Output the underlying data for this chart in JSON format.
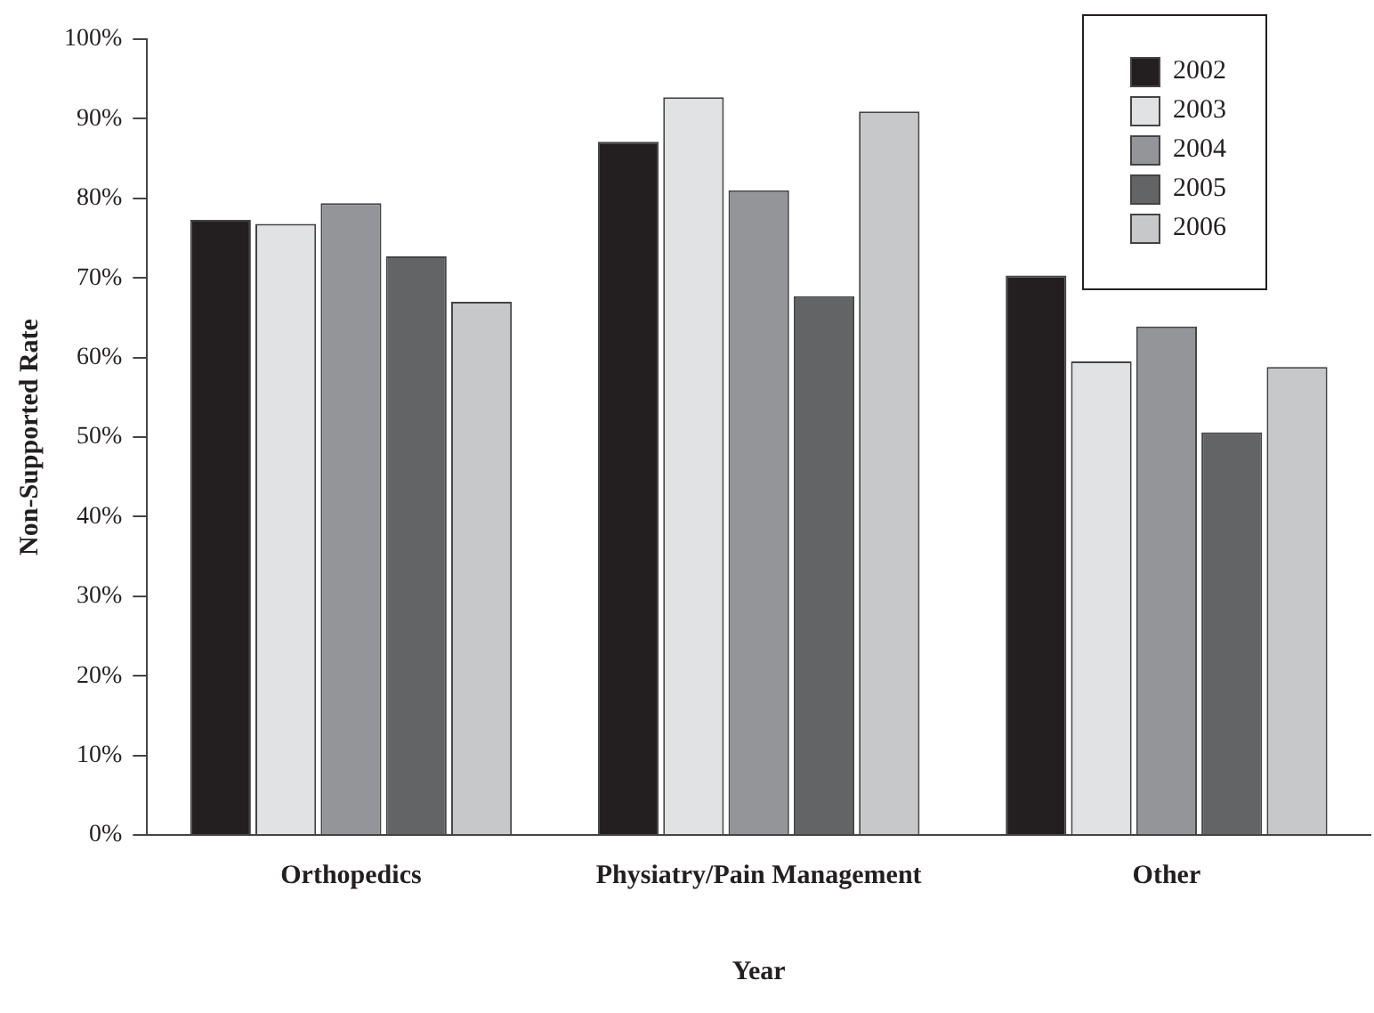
{
  "chart_data": {
    "type": "bar",
    "xlabel": "Year",
    "ylabel": "Non-Supported Rate",
    "categories": [
      "Orthopedics",
      "Physiatry/Pain Management",
      "Other"
    ],
    "series": [
      {
        "name": "2002",
        "color": "#231f20",
        "values": [
          77.3,
          87.1,
          70.3
        ]
      },
      {
        "name": "2003",
        "color": "#e1e2e4",
        "values": [
          76.8,
          92.7,
          59.5
        ]
      },
      {
        "name": "2004",
        "color": "#939598",
        "values": [
          79.4,
          81,
          63.9
        ]
      },
      {
        "name": "2005",
        "color": "#636466",
        "values": [
          72.7,
          67.7,
          50.6
        ]
      },
      {
        "name": "2006",
        "color": "#c7c8ca",
        "values": [
          67,
          90.9,
          58.8
        ]
      }
    ],
    "ylim": [
      0,
      100
    ],
    "yticks": [
      {
        "value": 0,
        "label": "0%"
      },
      {
        "value": 10,
        "label": "10%"
      },
      {
        "value": 20,
        "label": "20%"
      },
      {
        "value": 30,
        "label": "30%"
      },
      {
        "value": 40,
        "label": "40%"
      },
      {
        "value": 50,
        "label": "50%"
      },
      {
        "value": 60,
        "label": "60%"
      },
      {
        "value": 70,
        "label": "70%"
      },
      {
        "value": 80,
        "label": "80%"
      },
      {
        "value": 90,
        "label": "90%"
      },
      {
        "value": 100,
        "label": "100%"
      }
    ],
    "grid": false,
    "legend": "top right"
  }
}
